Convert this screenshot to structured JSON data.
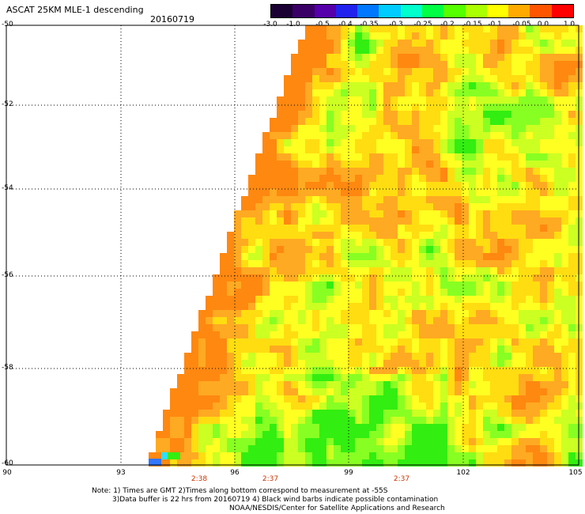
{
  "header": {
    "title": "ASCAT 25KM MLE-1 descending",
    "date": "20160719"
  },
  "colorbar": {
    "labels": [
      "-3.0",
      "-1.0",
      "-0.5",
      "-0.4",
      "-0.35",
      "-0.3",
      "-0.25",
      "-0.2",
      "-0.15",
      "-0.1",
      "-0.05",
      "0.0",
      "1.0"
    ],
    "colors": [
      "#1a0033",
      "#3a0066",
      "#5500aa",
      "#2222ee",
      "#0077ff",
      "#00ccff",
      "#00ffcc",
      "#00ff44",
      "#55ff00",
      "#aaff00",
      "#ffff00",
      "#ffaa00",
      "#ff5500",
      "#ff0000"
    ]
  },
  "axes": {
    "lat_labels": [
      "-50",
      "-52",
      "-54",
      "-56",
      "-58",
      "-60"
    ],
    "lon_labels": [
      "90",
      "93",
      "96",
      "99",
      "102",
      "105"
    ]
  },
  "times": [
    "2:38",
    "2:37",
    "2:37"
  ],
  "notes": [
    "Note: 1) Times are GMT 2)Times along bottom correspond to measurement at -55S",
    "3)Data buffer is 22 hrs from 20160719 4) Black wind barbs indicate possible contamination",
    "NOAA/NESDIS/Center for Satellite Applications and Research"
  ]
}
